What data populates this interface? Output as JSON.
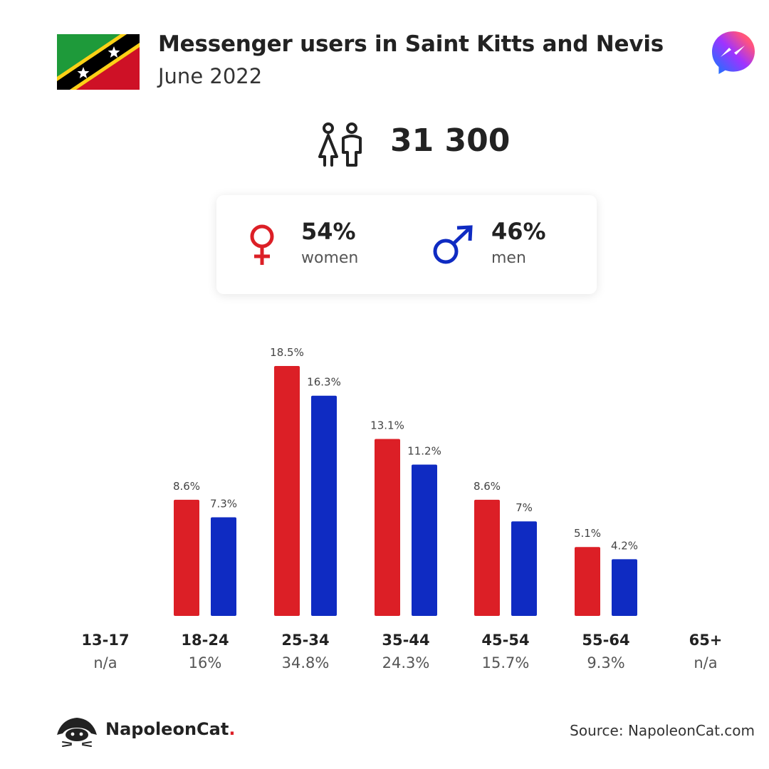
{
  "header": {
    "title": "Messenger users in Saint Kitts and Nevis",
    "subtitle": "June 2022",
    "flag_icon": "saint-kitts-and-nevis-flag",
    "app_icon": "messenger-icon"
  },
  "total": {
    "value": "31 300",
    "icon": "people-icon"
  },
  "gender": {
    "women": {
      "pct": "54%",
      "label": "women",
      "color": "#dc1f26"
    },
    "men": {
      "pct": "46%",
      "label": "men",
      "color": "#0f2bc2"
    }
  },
  "chart_data": {
    "type": "bar",
    "categories": [
      "13-17",
      "18-24",
      "25-34",
      "35-44",
      "45-54",
      "55-64",
      "65+"
    ],
    "category_totals": [
      "n/a",
      "16%",
      "34.8%",
      "24.3%",
      "15.7%",
      "9.3%",
      "n/a"
    ],
    "series": [
      {
        "name": "women",
        "color": "#dc1f26",
        "values": [
          null,
          8.6,
          18.5,
          13.1,
          8.6,
          5.1,
          null
        ],
        "labels": [
          "",
          "8.6%",
          "18.5%",
          "13.1%",
          "8.6%",
          "5.1%",
          ""
        ]
      },
      {
        "name": "men",
        "color": "#0f2bc2",
        "values": [
          null,
          7.3,
          16.3,
          11.2,
          7.0,
          4.2,
          null
        ],
        "labels": [
          "",
          "7.3%",
          "16.3%",
          "11.2%",
          "7%",
          "4.2%",
          ""
        ]
      }
    ],
    "ylim": [
      0,
      18.5
    ],
    "grid": false,
    "legend": "none"
  },
  "footer": {
    "brand": "NapoleonCat",
    "brand_dot": ".",
    "source": "Source: NapoleonCat.com"
  }
}
